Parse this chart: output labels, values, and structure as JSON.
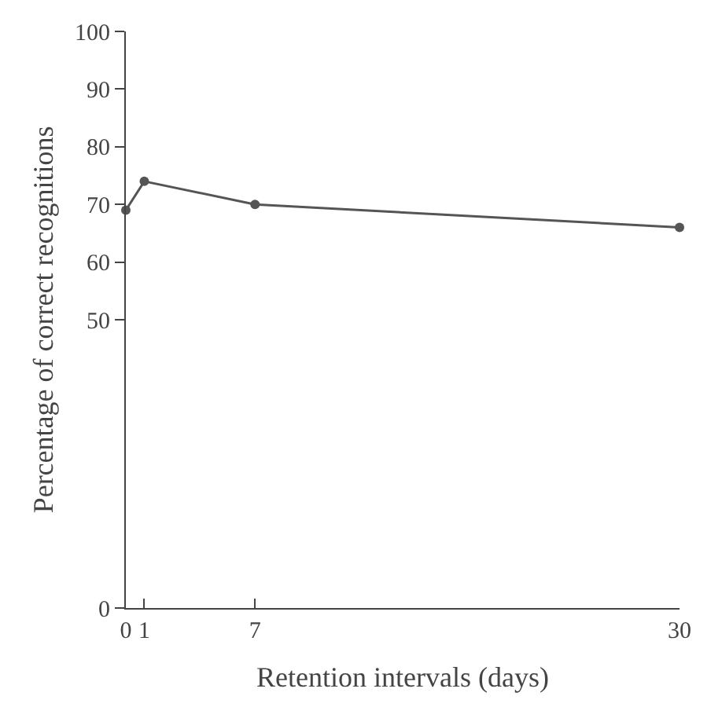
{
  "chart_data": {
    "type": "line",
    "xlabel": "Retention intervals (days)",
    "ylabel": "Percentage of correct recognitions",
    "x": [
      0,
      1,
      7,
      30
    ],
    "series": [
      {
        "color": "#555555",
        "values": [
          69,
          74,
          70,
          66
        ]
      }
    ],
    "xlim": [
      0,
      30
    ],
    "xticks": [
      0,
      1,
      7,
      30
    ],
    "ylim": [
      0,
      100
    ],
    "yticks": [
      0,
      50,
      60,
      70,
      80,
      90,
      100
    ],
    "marker": "circle",
    "line_style": "solid"
  }
}
